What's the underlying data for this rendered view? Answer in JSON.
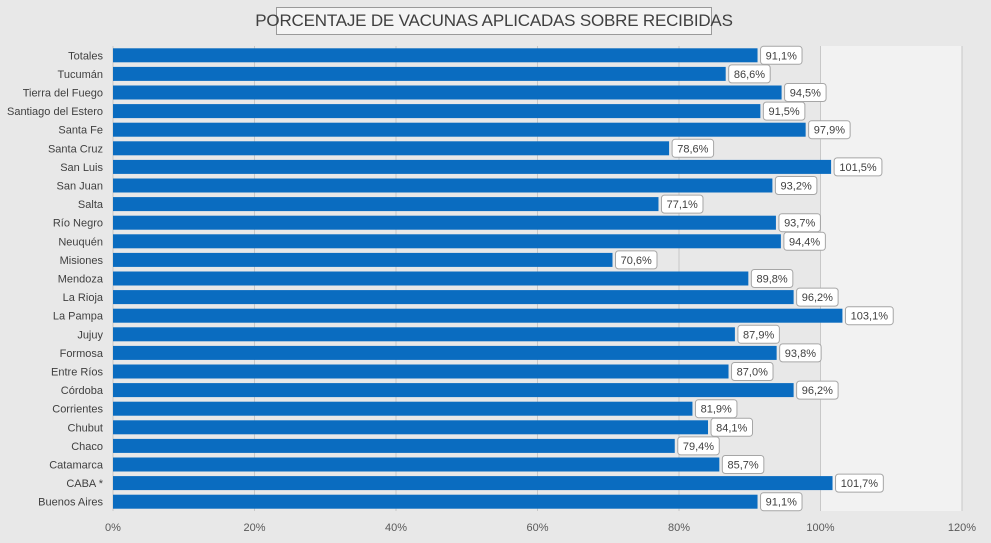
{
  "chart_data": {
    "type": "bar",
    "orientation": "horizontal",
    "title": "PORCENTAJE DE VACUNAS APLICADAS SOBRE RECIBIDAS",
    "categories": [
      "Totales",
      "Tucumán",
      "Tierra del Fuego",
      "Santiago del Estero",
      "Santa Fe",
      "Santa Cruz",
      "San Luis",
      "San Juan",
      "Salta",
      "Río Negro",
      "Neuquén",
      "Misiones",
      "Mendoza",
      "La Rioja",
      "La Pampa",
      "Jujuy",
      "Formosa",
      "Entre Ríos",
      "Córdoba",
      "Corrientes",
      "Chubut",
      "Chaco",
      "Catamarca",
      "CABA *",
      "Buenos Aires"
    ],
    "values": [
      91.1,
      86.6,
      94.5,
      91.5,
      97.9,
      78.6,
      101.5,
      93.2,
      77.1,
      93.7,
      94.4,
      70.6,
      89.8,
      96.2,
      103.1,
      87.9,
      93.8,
      87.0,
      96.2,
      81.9,
      84.1,
      79.4,
      85.7,
      101.7,
      91.1
    ],
    "data_labels": [
      "91,1%",
      "86,6%",
      "94,5%",
      "91,5%",
      "97,9%",
      "78,6%",
      "101,5%",
      "93,2%",
      "77,1%",
      "93,7%",
      "94,4%",
      "70,6%",
      "89,8%",
      "96,2%",
      "103,1%",
      "87,9%",
      "93,8%",
      "87,0%",
      "96,2%",
      "81,9%",
      "84,1%",
      "79,4%",
      "85,7%",
      "101,7%",
      "91,1%"
    ],
    "xlim": [
      0,
      120
    ],
    "x_ticks": [
      0,
      20,
      40,
      60,
      80,
      100,
      120
    ],
    "x_tick_labels": [
      "0%",
      "20%",
      "40%",
      "60%",
      "80%",
      "100%",
      "120%"
    ],
    "xlabel": "",
    "ylabel": "",
    "grid": true,
    "legend": "none",
    "bar_color": "#0a6cc0",
    "shaded_band": [
      100,
      120
    ],
    "shaded_band_color": "#f2f2f2"
  }
}
